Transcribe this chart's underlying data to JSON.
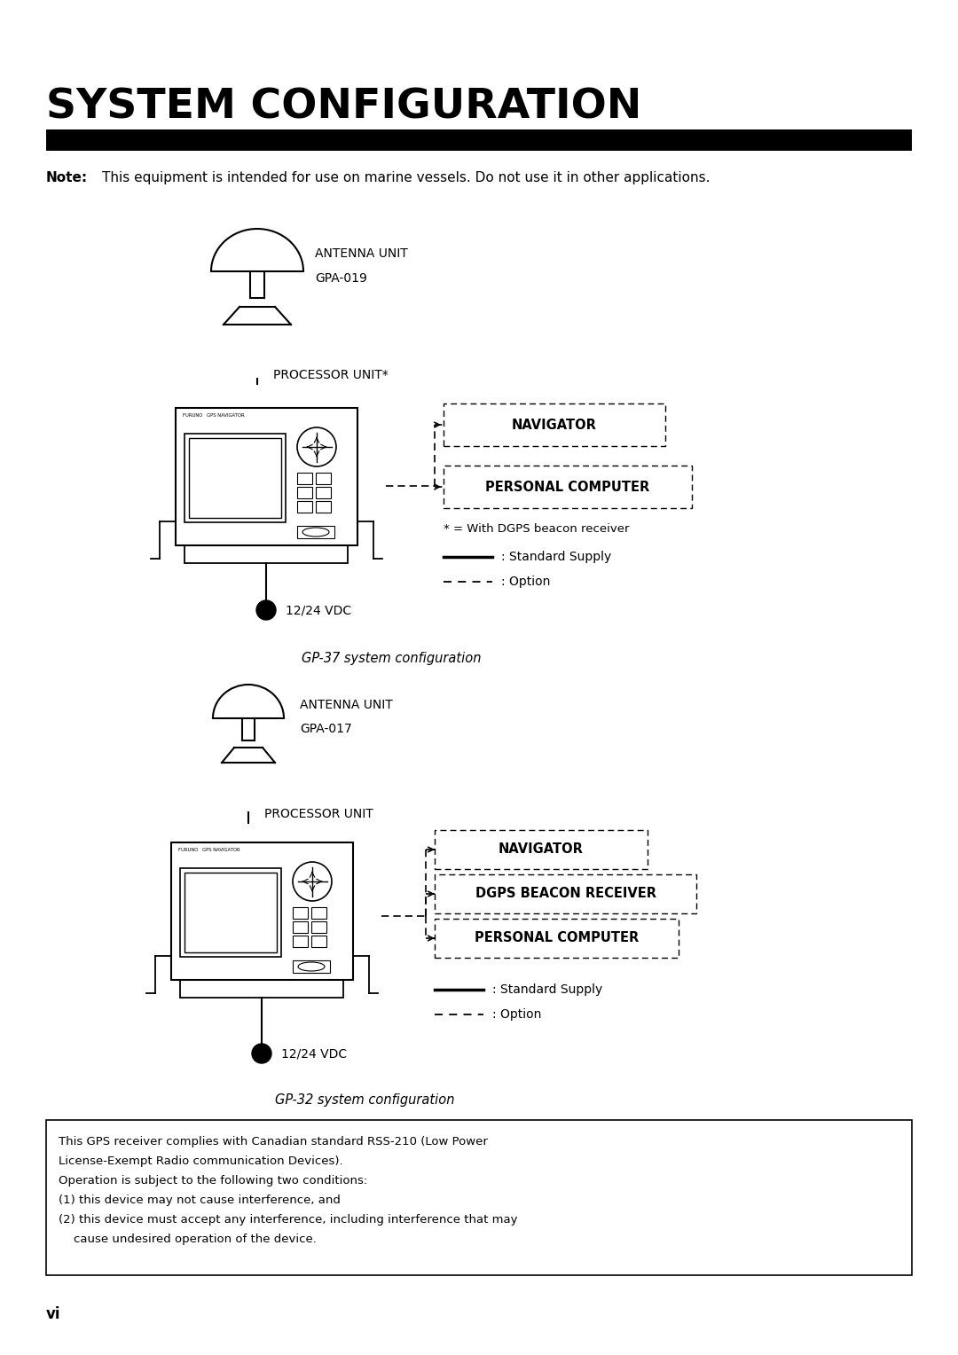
{
  "title": "SYSTEM CONFIGURATION",
  "bg_color": "#ffffff",
  "note_bold": "Note:",
  "note_rest": " This equipment is intended for use on marine vessels. Do not use it in other applications.",
  "gp37_label": "GP-37 system configuration",
  "gp32_label": "GP-32 system configuration",
  "antenna_unit1_line1": "ANTENNA UNIT",
  "antenna_unit1_line2": "GPA-019",
  "antenna_unit2_line1": "ANTENNA UNIT",
  "antenna_unit2_line2": "GPA-017",
  "processor_unit1": "PROCESSOR UNIT*",
  "processor_unit2": "PROCESSOR UNIT",
  "dgps_note": "* = With DGPS beacon receiver",
  "standard_supply": ": Standard Supply",
  "option": ": Option",
  "vdc_label": "12/24 VDC",
  "page_label": "vi",
  "disclaimer_line1": "This GPS receiver complies with Canadian standard RSS-210 (Low Power",
  "disclaimer_line2": "License-Exempt Radio communication Devices).",
  "disclaimer_line3": "Operation is subject to the following two conditions:",
  "disclaimer_line4": "(1) this device may not cause interference, and",
  "disclaimer_line5": "(2) this device must accept any interference, including interference that may",
  "disclaimer_line6": "    cause undesired operation of the device."
}
